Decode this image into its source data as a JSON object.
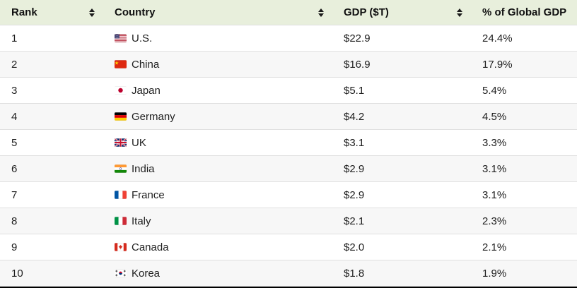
{
  "table": {
    "columns": [
      {
        "label": "Rank",
        "sortable": true
      },
      {
        "label": "Country",
        "sortable": true
      },
      {
        "label": "GDP ($T)",
        "sortable": true
      },
      {
        "label": "% of Global GDP",
        "sortable": false
      }
    ],
    "rows": [
      {
        "rank": "1",
        "flag": "us",
        "country": "U.S.",
        "gdp": "$22.9",
        "share": "24.4%"
      },
      {
        "rank": "2",
        "flag": "cn",
        "country": "China",
        "gdp": "$16.9",
        "share": "17.9%"
      },
      {
        "rank": "3",
        "flag": "jp",
        "country": "Japan",
        "gdp": "$5.1",
        "share": "5.4%"
      },
      {
        "rank": "4",
        "flag": "de",
        "country": "Germany",
        "gdp": "$4.2",
        "share": "4.5%"
      },
      {
        "rank": "5",
        "flag": "gb",
        "country": "UK",
        "gdp": "$3.1",
        "share": "3.3%"
      },
      {
        "rank": "6",
        "flag": "in",
        "country": "India",
        "gdp": "$2.9",
        "share": "3.1%"
      },
      {
        "rank": "7",
        "flag": "fr",
        "country": "France",
        "gdp": "$2.9",
        "share": "3.1%"
      },
      {
        "rank": "8",
        "flag": "it",
        "country": "Italy",
        "gdp": "$2.1",
        "share": "2.3%"
      },
      {
        "rank": "9",
        "flag": "ca",
        "country": "Canada",
        "gdp": "$2.0",
        "share": "2.1%"
      },
      {
        "rank": "10",
        "flag": "kr",
        "country": "Korea",
        "gdp": "$1.8",
        "share": "1.9%"
      }
    ]
  },
  "icons": {
    "sort": "up-down-sort-arrows"
  },
  "colors": {
    "header_bg": "#e8efdc",
    "row_alt_bg": "#f7f7f7",
    "row_border": "#e0e0e0",
    "bottom_border": "#000000",
    "text": "#1e1e1e"
  }
}
